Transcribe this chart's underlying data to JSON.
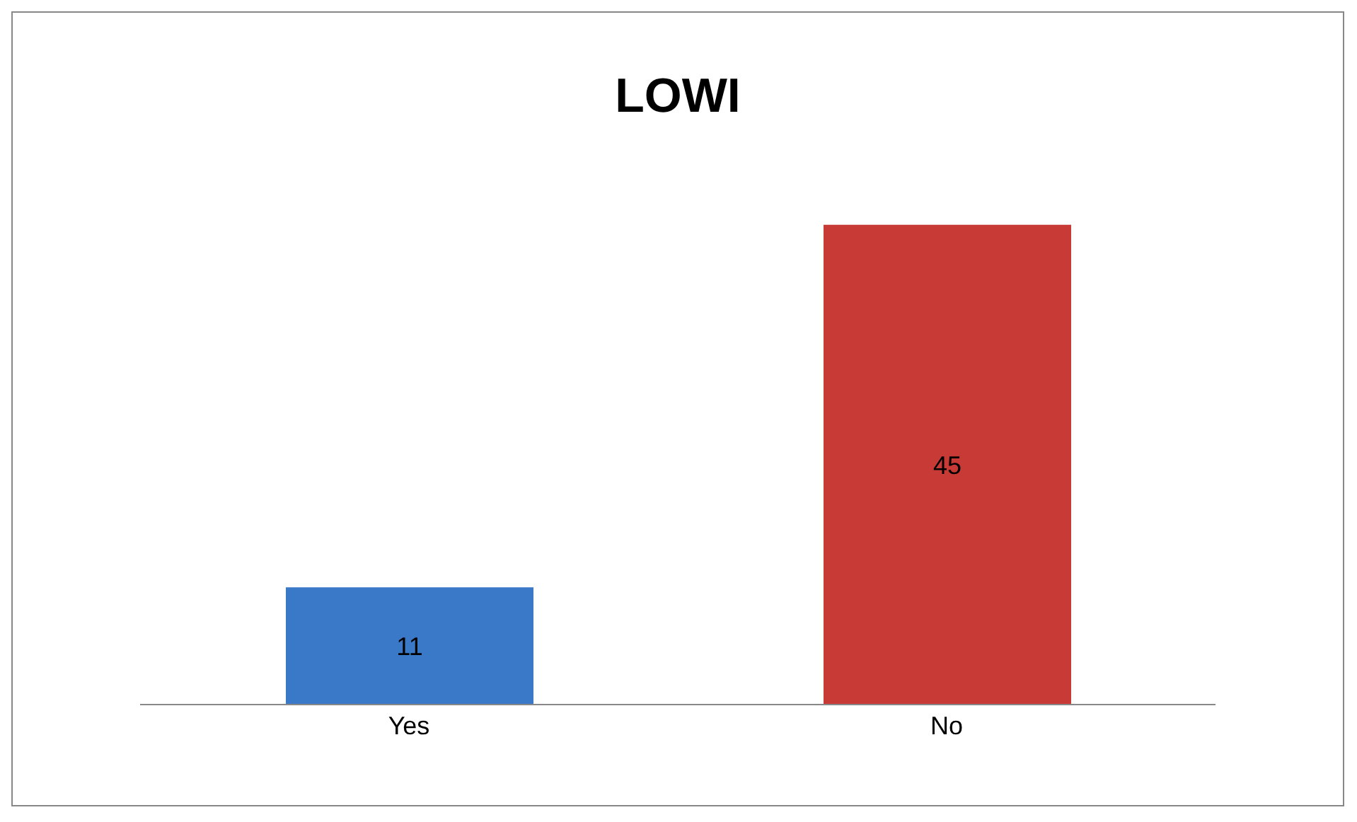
{
  "chart_data": {
    "type": "bar",
    "title": "LOWI",
    "categories": [
      "Yes",
      "No"
    ],
    "values": [
      11,
      45
    ],
    "colors": [
      "#3a78c8",
      "#c83a35"
    ],
    "data_labels": true
  }
}
